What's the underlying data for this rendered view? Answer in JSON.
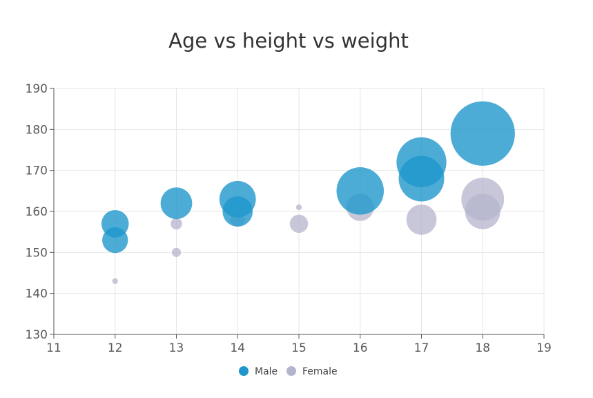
{
  "chart_data": {
    "type": "scatter",
    "title": "Age vs height vs weight",
    "xlabel": "",
    "ylabel": "",
    "xlim": [
      11,
      19
    ],
    "ylim": [
      130,
      190
    ],
    "x_ticks": [
      "11",
      "12",
      "13",
      "14",
      "15",
      "16",
      "17",
      "18",
      "19"
    ],
    "y_ticks": [
      "130",
      "140",
      "150",
      "160",
      "170",
      "180",
      "190"
    ],
    "grid": true,
    "legend": "bottom-center",
    "series": [
      {
        "name": "Male",
        "color": "#1f97cc",
        "points": [
          {
            "x": 12,
            "y": 157,
            "size": 45
          },
          {
            "x": 12,
            "y": 153,
            "size": 40
          },
          {
            "x": 13,
            "y": 162,
            "size": 60
          },
          {
            "x": 14,
            "y": 160,
            "size": 55
          },
          {
            "x": 14,
            "y": 163,
            "size": 80
          },
          {
            "x": 16,
            "y": 165,
            "size": 135
          },
          {
            "x": 17,
            "y": 168,
            "size": 125
          },
          {
            "x": 17,
            "y": 172,
            "size": 150
          },
          {
            "x": 18,
            "y": 179,
            "size": 250
          }
        ]
      },
      {
        "name": "Female",
        "color": "#b4b4cc",
        "points": [
          {
            "x": 12,
            "y": 143,
            "size": 2
          },
          {
            "x": 13,
            "y": 150,
            "size": 5
          },
          {
            "x": 13,
            "y": 157,
            "size": 8
          },
          {
            "x": 14,
            "y": 158,
            "size": 12
          },
          {
            "x": 15,
            "y": 161,
            "size": 2
          },
          {
            "x": 15,
            "y": 157,
            "size": 20
          },
          {
            "x": 16,
            "y": 161,
            "size": 45
          },
          {
            "x": 17,
            "y": 158,
            "size": 55
          },
          {
            "x": 18,
            "y": 160,
            "size": 75
          },
          {
            "x": 18,
            "y": 163,
            "size": 110
          }
        ]
      }
    ]
  }
}
